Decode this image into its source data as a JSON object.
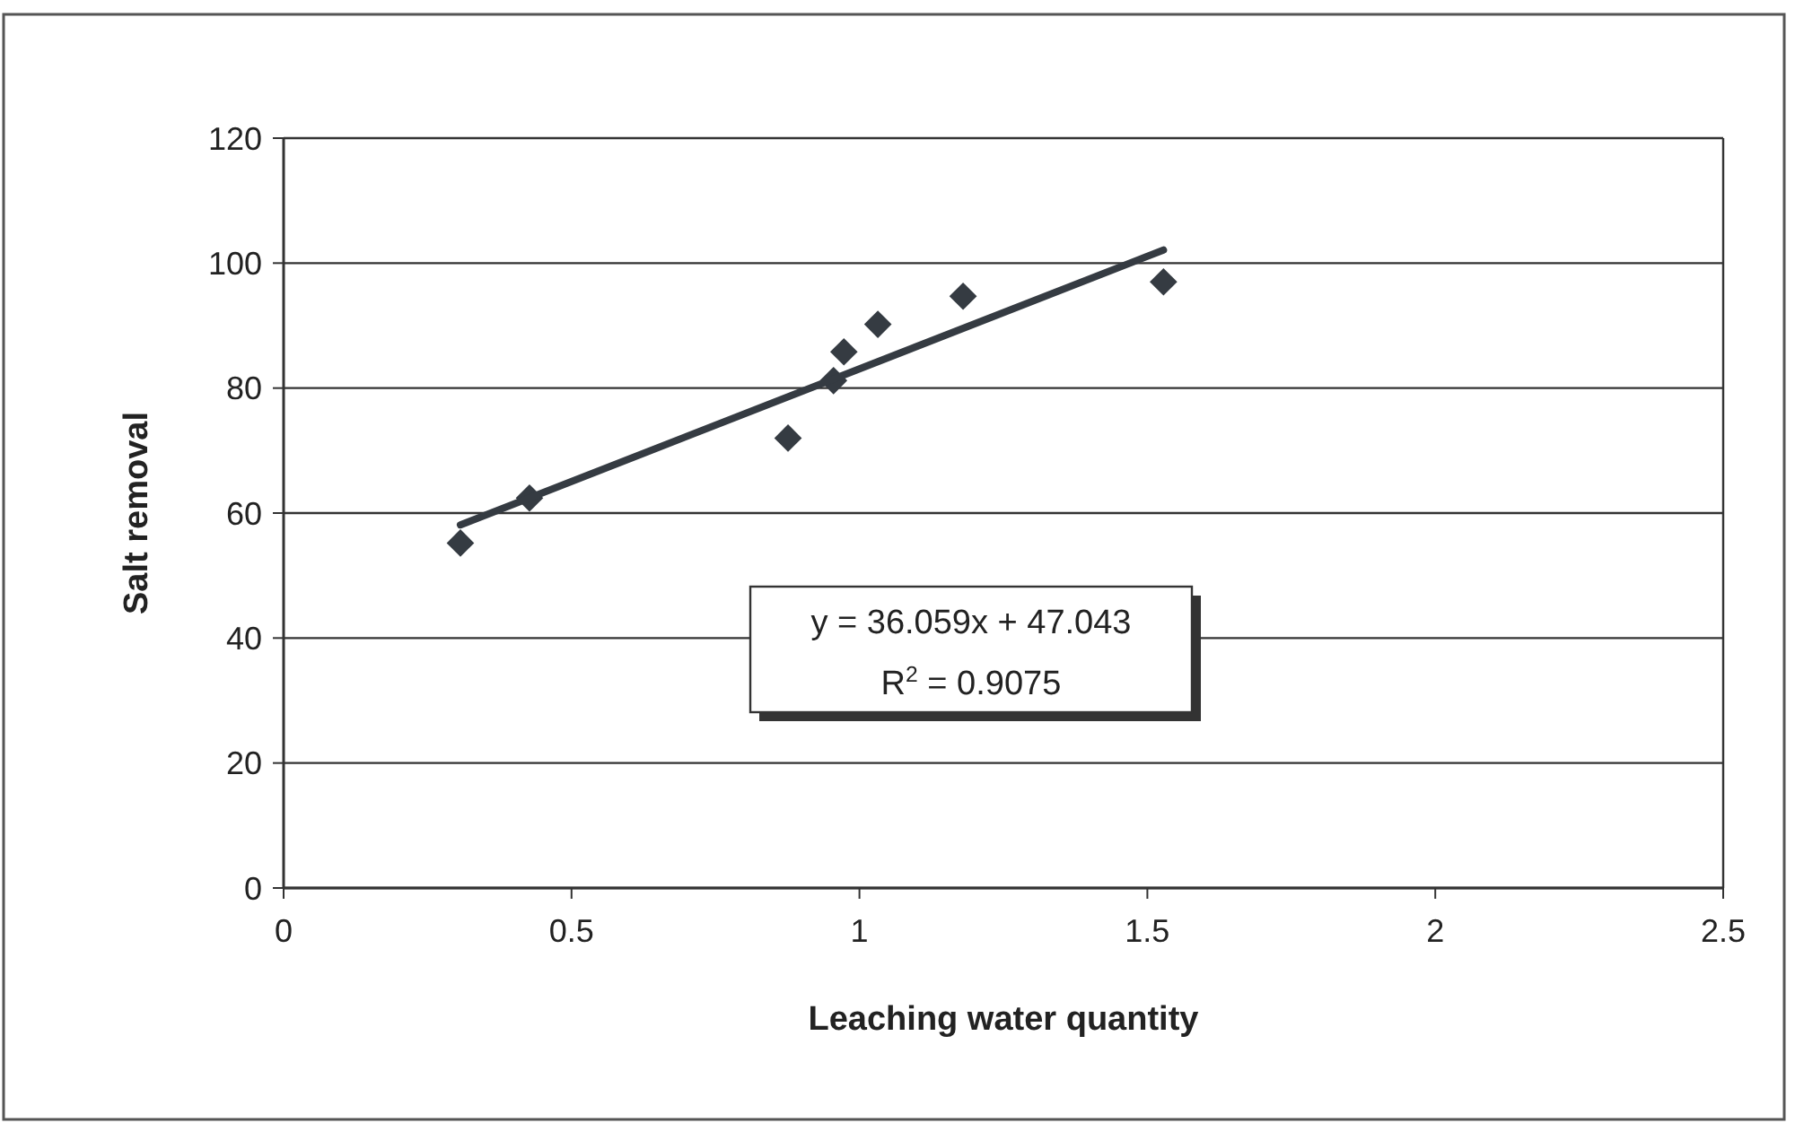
{
  "chart_data": {
    "type": "scatter",
    "xlabel": "Leaching water quantity",
    "ylabel": "Salt removal",
    "xlim": [
      0,
      2.5
    ],
    "xticks": [
      0,
      0.5,
      1,
      1.5,
      2,
      2.5
    ],
    "ylim": [
      0,
      120
    ],
    "yticks": [
      0,
      20,
      40,
      60,
      80,
      100,
      120
    ],
    "grid": "y",
    "marker": "diamond",
    "annotations": [
      "y = 36.059x + 47.043",
      "R$^{2}$ = 0.9075"
    ],
    "series": [
      {
        "color": "#353b42",
        "x": [
          0.307,
          0.427,
          0.876,
          0.955,
          0.973,
          1.032,
          1.18,
          1.528
        ],
        "values": [
          55.2,
          62.4,
          72,
          81.2,
          85.8,
          90.2,
          94.7,
          97
        ]
      },
      {
        "type": "line",
        "color": "#353b42",
        "marker": "none",
        "x": [
          0.307,
          1.528
        ],
        "values": [
          58.1,
          102.1
        ]
      }
    ]
  }
}
